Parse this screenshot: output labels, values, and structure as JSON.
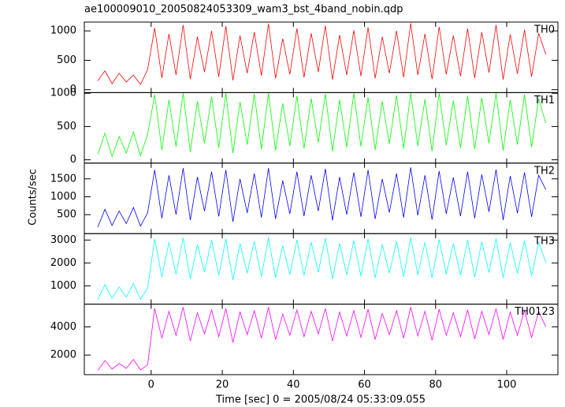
{
  "chart_data": {
    "type": "line",
    "title": "ae100009010_20050824053309_wam3_bst_4band_nobin.qdp",
    "x_label": "Time [sec] 0 = 2005/08/24 05:33:09.055",
    "y_label": "Counts/sec",
    "xlim": [
      -18.8,
      114.4
    ],
    "xticks": [
      0,
      20,
      40,
      60,
      80,
      100
    ],
    "x": [
      -15,
      -13,
      -11,
      -9,
      -7,
      -5,
      -3,
      -1,
      1,
      3,
      5,
      7,
      9,
      11,
      13,
      15,
      17,
      19,
      21,
      23,
      25,
      27,
      29,
      31,
      33,
      35,
      37,
      39,
      41,
      43,
      45,
      47,
      49,
      51,
      53,
      55,
      57,
      59,
      61,
      63,
      65,
      67,
      69,
      71,
      73,
      75,
      77,
      79,
      81,
      83,
      85,
      87,
      89,
      91,
      93,
      95,
      97,
      99,
      101,
      103,
      105,
      107,
      109,
      111
    ],
    "series": [
      {
        "name": "TH0",
        "color": "#ff0000",
        "ylim": [
          -50,
          1150
        ],
        "yticks": [
          0,
          500,
          1000
        ],
        "values": [
          150,
          320,
          100,
          280,
          130,
          250,
          90,
          340,
          1050,
          200,
          950,
          250,
          1100,
          180,
          900,
          300,
          1000,
          220,
          1080,
          160,
          920,
          280,
          980,
          240,
          1120,
          190,
          870,
          260,
          1040,
          210,
          960,
          300,
          1090,
          170,
          930,
          250,
          1010,
          230,
          1060,
          190,
          900,
          280,
          1000,
          210,
          1130,
          250,
          950,
          180,
          1070,
          260,
          920,
          230,
          1040,
          200,
          980,
          290,
          1100,
          170,
          940,
          270,
          1020,
          220,
          960,
          600
        ]
      },
      {
        "name": "TH1",
        "color": "#00ff00",
        "ylim": [
          -50,
          1010
        ],
        "yticks": [
          0,
          500,
          1000
        ],
        "values": [
          80,
          400,
          50,
          350,
          100,
          420,
          60,
          380,
          980,
          150,
          900,
          200,
          1000,
          120,
          880,
          250,
          950,
          180,
          1000,
          100,
          870,
          230,
          990,
          160,
          1000,
          140,
          850,
          210,
          960,
          170,
          920,
          260,
          990,
          130,
          900,
          190,
          1000,
          200,
          940,
          150,
          880,
          240,
          970,
          170,
          1000,
          210,
          910,
          130,
          1000,
          220,
          890,
          180,
          960,
          160,
          930,
          250,
          1000,
          140,
          900,
          230,
          980,
          190,
          920,
          550
        ]
      },
      {
        "name": "TH2",
        "color": "#0000ff",
        "ylim": [
          -30,
          1940
        ],
        "yticks": [
          500,
          1000,
          1500
        ],
        "values": [
          150,
          650,
          200,
          600,
          250,
          700,
          180,
          550,
          1750,
          400,
          1600,
          500,
          1800,
          350,
          1550,
          600,
          1700,
          450,
          1750,
          300,
          1500,
          550,
          1650,
          420,
          1800,
          380,
          1450,
          520,
          1700,
          460,
          1600,
          600,
          1780,
          340,
          1550,
          500,
          1680,
          440,
          1750,
          380,
          1500,
          560,
          1650,
          420,
          1820,
          480,
          1600,
          360,
          1720,
          520,
          1540,
          460,
          1700,
          400,
          1620,
          580,
          1760,
          350,
          1580,
          540,
          1680,
          440,
          1600,
          1200
        ]
      },
      {
        "name": "TH3",
        "color": "#00ffff",
        "ylim": [
          200,
          3280
        ],
        "yticks": [
          1000,
          2000,
          3000
        ],
        "values": [
          400,
          1050,
          450,
          950,
          500,
          1100,
          420,
          900,
          3050,
          1400,
          2900,
          1500,
          3100,
          1300,
          2800,
          1600,
          3000,
          1450,
          3050,
          1250,
          2850,
          1550,
          2950,
          1400,
          3100,
          1350,
          2750,
          1500,
          3000,
          1450,
          2900,
          1600,
          3080,
          1300,
          2850,
          1480,
          2980,
          1420,
          3050,
          1350,
          2800,
          1550,
          2950,
          1400,
          3120,
          1480,
          2900,
          1360,
          3020,
          1520,
          2840,
          1460,
          3000,
          1380,
          2920,
          1580,
          3060,
          1350,
          2880,
          1540,
          2980,
          1440,
          2900,
          2000
        ]
      },
      {
        "name": "TH0123",
        "color": "#ff00ff",
        "ylim": [
          610,
          5610
        ],
        "yticks": [
          2000,
          4000
        ],
        "values": [
          900,
          1600,
          1000,
          1400,
          1050,
          1700,
          950,
          1300,
          5300,
          3200,
          5100,
          3400,
          5400,
          3000,
          5000,
          3500,
          5200,
          3300,
          5300,
          2900,
          5050,
          3450,
          5150,
          3200,
          5400,
          3100,
          4900,
          3400,
          5200,
          3300,
          5100,
          3500,
          5300,
          3000,
          5050,
          3350,
          5150,
          3250,
          5250,
          3100,
          4950,
          3450,
          5150,
          3200,
          5400,
          3350,
          5100,
          3050,
          5250,
          3400,
          5000,
          3300,
          5200,
          3150,
          5100,
          3450,
          5300,
          3100,
          5050,
          3400,
          5150,
          3250,
          5100,
          4000
        ]
      }
    ]
  }
}
